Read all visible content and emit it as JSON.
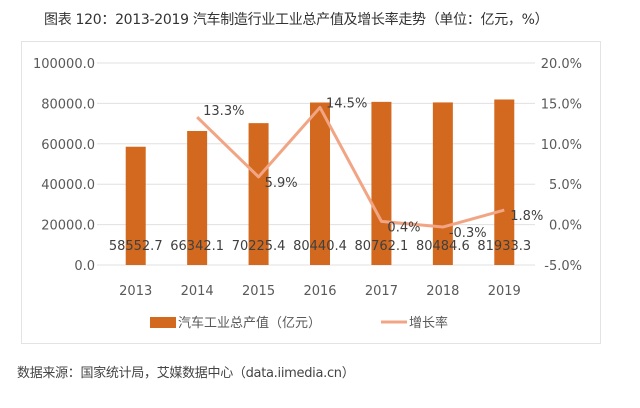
{
  "title": "图表 120：2013-2019 汽车制造行业工业总产值及增长率走势（单位：亿元，%）",
  "source": "数据来源：国家统计局，艾媒数据中心（data.iimedia.cn）",
  "chart_data": {
    "type": "bar+line",
    "categories": [
      "2013",
      "2014",
      "2015",
      "2016",
      "2017",
      "2018",
      "2019"
    ],
    "series": [
      {
        "name": "汽车工业总产值（亿元）",
        "type": "bar",
        "axis": "left",
        "color": "#D2691E",
        "values": [
          58552.7,
          66342.1,
          70225.4,
          80440.4,
          80762.1,
          80484.6,
          81933.3
        ],
        "labels": [
          "58552.7",
          "66342.1",
          "70225.4",
          "80440.4",
          "80762.1",
          "80484.6",
          "81933.3"
        ]
      },
      {
        "name": "增长率",
        "type": "line",
        "axis": "right",
        "color": "#F2A584",
        "values": [
          null,
          13.3,
          5.9,
          14.5,
          0.4,
          -0.3,
          1.8
        ],
        "labels": [
          "",
          "13.3%",
          "5.9%",
          "14.5%",
          "0.4%",
          "-0.3%",
          "1.8%"
        ]
      }
    ],
    "left_axis": {
      "ylim": [
        0,
        100000
      ],
      "ticks": [
        "0.0",
        "20000.0",
        "40000.0",
        "60000.0",
        "80000.0",
        "100000.0"
      ]
    },
    "right_axis": {
      "ylim": [
        -5,
        20
      ],
      "ticks": [
        "-5.0%",
        "0.0%",
        "5.0%",
        "10.0%",
        "15.0%",
        "20.0%"
      ]
    },
    "grid": true,
    "legend": "bottom"
  }
}
